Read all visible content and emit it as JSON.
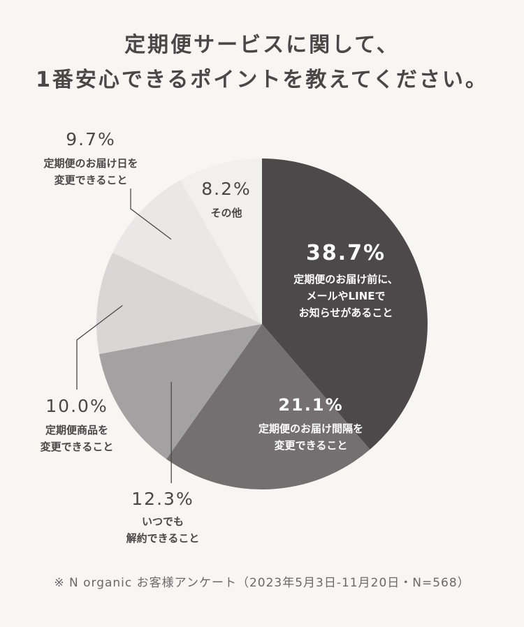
{
  "title": {
    "line1": "定期便サービスに関して、",
    "line2": "1番安心できるポイントを教えてください。"
  },
  "chart_data": {
    "type": "pie",
    "title": "定期便サービスに関して、1番安心できるポイントを教えてください。",
    "slices": [
      {
        "label_lines": [
          "定期便のお届け前に、",
          "メールやLINEで",
          "お知らせがあること"
        ],
        "value": 38.7,
        "value_text": "38.7%",
        "color": "#4d494a"
      },
      {
        "label_lines": [
          "定期便のお届け間隔を",
          "変更できること"
        ],
        "value": 21.1,
        "value_text": "21.1%",
        "color": "#747071"
      },
      {
        "label_lines": [
          "いつでも",
          "解約できること"
        ],
        "value": 12.3,
        "value_text": "12.3%",
        "color": "#a4a1a2"
      },
      {
        "label_lines": [
          "定期便商品を",
          "変更できること"
        ],
        "value": 10.0,
        "value_text": "10.0%",
        "color": "#d9d7d6"
      },
      {
        "label_lines": [
          "定期便のお届け日を",
          "変更できること"
        ],
        "value": 9.7,
        "value_text": "9.7%",
        "color": "#eae8e6"
      },
      {
        "label_lines": [
          "その他"
        ],
        "value": 8.2,
        "value_text": "8.2%",
        "color": "#f2f0ee"
      }
    ]
  },
  "footer": "※ N organic お客様アンケート（2023年5月3日-11月20日・N=568）"
}
